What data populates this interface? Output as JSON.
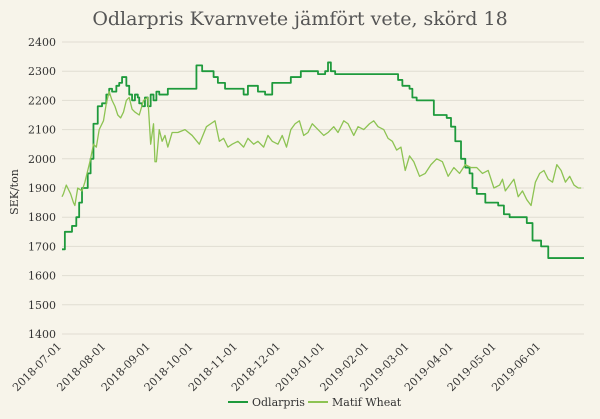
{
  "chart_data": {
    "type": "line",
    "title": "Odlarpris Kvarnvete jämfört vete, skörd 18",
    "ylabel": "SEK/ton",
    "xlabel": "",
    "ylim": [
      1400,
      2400
    ],
    "yticks": [
      1400,
      1500,
      1600,
      1700,
      1800,
      1900,
      2000,
      2100,
      2200,
      2300,
      2400
    ],
    "xlim": [
      "2018-07-01",
      "2019-07-01"
    ],
    "xticks": [
      "2018-07-01",
      "2018-08-01",
      "2018-09-01",
      "2018-10-01",
      "2018-11-01",
      "2018-12-01",
      "2019-01-01",
      "2019-02-01",
      "2019-03-01",
      "2019-04-01",
      "2019-05-01",
      "2019-06-01"
    ],
    "grid": "horizontal",
    "legend": "bottom-center",
    "series": [
      {
        "name": "Odlarpris",
        "color": "#1e9a3c",
        "step": true,
        "x": [
          "2018-07-01",
          "2018-07-03",
          "2018-07-08",
          "2018-07-11",
          "2018-07-13",
          "2018-07-15",
          "2018-07-19",
          "2018-07-21",
          "2018-07-23",
          "2018-07-26",
          "2018-07-29",
          "2018-08-01",
          "2018-08-03",
          "2018-08-05",
          "2018-08-08",
          "2018-08-10",
          "2018-08-12",
          "2018-08-15",
          "2018-08-17",
          "2018-08-19",
          "2018-08-21",
          "2018-08-23",
          "2018-08-24",
          "2018-08-26",
          "2018-08-28",
          "2018-08-30",
          "2018-09-01",
          "2018-09-03",
          "2018-09-05",
          "2018-09-07",
          "2018-09-09",
          "2018-09-11",
          "2018-09-13",
          "2018-09-28",
          "2018-10-03",
          "2018-10-07",
          "2018-10-11",
          "2018-10-15",
          "2018-10-18",
          "2018-10-23",
          "2018-10-27",
          "2018-11-01",
          "2018-11-05",
          "2018-11-08",
          "2018-11-15",
          "2018-11-20",
          "2018-11-25",
          "2018-12-03",
          "2018-12-08",
          "2018-12-15",
          "2018-12-20",
          "2018-12-27",
          "2019-01-01",
          "2019-01-03",
          "2019-01-05",
          "2019-01-08",
          "2019-01-20",
          "2019-02-05",
          "2019-02-19",
          "2019-02-21",
          "2019-02-24",
          "2019-03-01",
          "2019-03-03",
          "2019-03-06",
          "2019-03-18",
          "2019-03-21",
          "2019-03-24",
          "2019-03-27",
          "2019-03-30",
          "2019-04-02",
          "2019-04-06",
          "2019-04-09",
          "2019-04-12",
          "2019-04-14",
          "2019-04-17",
          "2019-04-20",
          "2019-04-23",
          "2019-04-26",
          "2019-05-02",
          "2019-05-06",
          "2019-05-10",
          "2019-05-14",
          "2019-05-18",
          "2019-05-22",
          "2019-05-26",
          "2019-06-01",
          "2019-06-06",
          "2019-06-09",
          "2019-06-12",
          "2019-06-15",
          "2019-07-01"
        ],
        "values": [
          1690,
          1750,
          1770,
          1800,
          1850,
          1900,
          1950,
          2000,
          2120,
          2180,
          2190,
          2220,
          2240,
          2230,
          2250,
          2260,
          2280,
          2250,
          2220,
          2200,
          2220,
          2210,
          2190,
          2180,
          2210,
          2180,
          2220,
          2200,
          2230,
          2220,
          2220,
          2220,
          2240,
          2240,
          2320,
          2300,
          2300,
          2280,
          2260,
          2240,
          2240,
          2240,
          2220,
          2250,
          2230,
          2220,
          2260,
          2260,
          2280,
          2300,
          2300,
          2290,
          2300,
          2330,
          2300,
          2290,
          2290,
          2290,
          2290,
          2270,
          2250,
          2240,
          2210,
          2200,
          2150,
          2150,
          2150,
          2140,
          2110,
          2060,
          2000,
          1970,
          1950,
          1900,
          1880,
          1880,
          1850,
          1850,
          1840,
          1810,
          1800,
          1800,
          1800,
          1780,
          1720,
          1700,
          1660,
          1660,
          1660,
          1660,
          1660
        ]
      },
      {
        "name": "Matif Wheat",
        "color": "#8dc353",
        "step": false,
        "x": [
          "2018-07-01",
          "2018-07-02",
          "2018-07-04",
          "2018-07-05",
          "2018-07-07",
          "2018-07-09",
          "2018-07-10",
          "2018-07-12",
          "2018-07-15",
          "2018-07-17",
          "2018-07-19",
          "2018-07-21",
          "2018-07-23",
          "2018-07-25",
          "2018-07-27",
          "2018-07-30",
          "2018-08-01",
          "2018-08-03",
          "2018-08-05",
          "2018-08-07",
          "2018-08-09",
          "2018-08-11",
          "2018-08-13",
          "2018-08-15",
          "2018-08-17",
          "2018-08-19",
          "2018-08-21",
          "2018-08-24",
          "2018-08-27",
          "2018-08-30",
          "2018-09-01",
          "2018-09-03",
          "2018-09-04",
          "2018-09-05",
          "2018-09-07",
          "2018-09-09",
          "2018-09-11",
          "2018-09-13",
          "2018-09-16",
          "2018-09-20",
          "2018-09-25",
          "2018-09-30",
          "2018-10-05",
          "2018-10-10",
          "2018-10-13",
          "2018-10-16",
          "2018-10-19",
          "2018-10-22",
          "2018-10-25",
          "2018-10-28",
          "2018-11-01",
          "2018-11-05",
          "2018-11-08",
          "2018-11-12",
          "2018-11-15",
          "2018-11-19",
          "2018-11-22",
          "2018-11-25",
          "2018-11-29",
          "2018-12-02",
          "2018-12-05",
          "2018-12-08",
          "2018-12-11",
          "2018-12-14",
          "2018-12-17",
          "2018-12-20",
          "2018-12-23",
          "2018-12-27",
          "2018-12-31",
          "2019-01-03",
          "2019-01-07",
          "2019-01-10",
          "2019-01-14",
          "2019-01-17",
          "2019-01-21",
          "2019-01-24",
          "2019-01-28",
          "2019-02-01",
          "2019-02-04",
          "2019-02-07",
          "2019-02-11",
          "2019-02-14",
          "2019-02-17",
          "2019-02-20",
          "2019-02-23",
          "2019-02-26",
          "2019-03-01",
          "2019-03-04",
          "2019-03-08",
          "2019-03-12",
          "2019-03-16",
          "2019-03-20",
          "2019-03-24",
          "2019-03-28",
          "2019-04-01",
          "2019-04-05",
          "2019-04-09",
          "2019-04-13",
          "2019-04-17",
          "2019-04-21",
          "2019-04-25",
          "2019-04-29",
          "2019-05-03",
          "2019-05-05",
          "2019-05-07",
          "2019-05-10",
          "2019-05-13",
          "2019-05-16",
          "2019-05-19",
          "2019-05-22",
          "2019-05-25",
          "2019-05-28",
          "2019-05-31",
          "2019-06-03",
          "2019-06-06",
          "2019-06-09",
          "2019-06-12",
          "2019-06-15",
          "2019-06-18",
          "2019-06-21",
          "2019-06-24",
          "2019-06-27",
          "2019-06-29"
        ],
        "values": [
          1870,
          1880,
          1910,
          1900,
          1880,
          1850,
          1840,
          1900,
          1890,
          1920,
          1960,
          2000,
          2050,
          2040,
          2100,
          2130,
          2190,
          2230,
          2200,
          2180,
          2150,
          2140,
          2160,
          2200,
          2210,
          2170,
          2160,
          2150,
          2200,
          2210,
          2050,
          2120,
          1990,
          1990,
          2100,
          2060,
          2080,
          2040,
          2090,
          2090,
          2100,
          2080,
          2050,
          2110,
          2120,
          2130,
          2060,
          2070,
          2040,
          2050,
          2060,
          2040,
          2070,
          2050,
          2060,
          2040,
          2080,
          2060,
          2050,
          2080,
          2040,
          2100,
          2120,
          2130,
          2080,
          2090,
          2120,
          2100,
          2080,
          2090,
          2110,
          2090,
          2130,
          2120,
          2080,
          2110,
          2100,
          2120,
          2130,
          2110,
          2100,
          2070,
          2060,
          2030,
          2040,
          1960,
          2010,
          1990,
          1940,
          1950,
          1980,
          2000,
          1990,
          1940,
          1970,
          1950,
          1980,
          1970,
          1970,
          1950,
          1960,
          1900,
          1910,
          1930,
          1890,
          1910,
          1930,
          1870,
          1890,
          1860,
          1840,
          1920,
          1950,
          1960,
          1930,
          1920,
          1980,
          1960,
          1920,
          1940,
          1910,
          1900,
          1900
        ]
      }
    ]
  }
}
